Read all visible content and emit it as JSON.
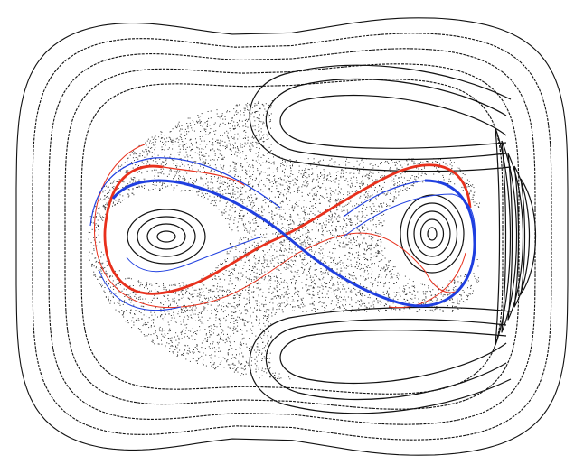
{
  "figure": {
    "kind": "poincare-section",
    "background": "#ffffff",
    "colors": {
      "curves": "#111111",
      "chaos": "#333333",
      "manifold_red": "#e8301c",
      "manifold_blue": "#1f3fe0"
    },
    "outer_curve_count": 5,
    "left_island_ring_count": 4,
    "right_island_ring_count": 5,
    "right_band_arc_count": 5,
    "chaotic_scatter": true,
    "unstable_manifold": "red",
    "stable_manifold": "blue",
    "crossing_shape": "figure-eight"
  }
}
